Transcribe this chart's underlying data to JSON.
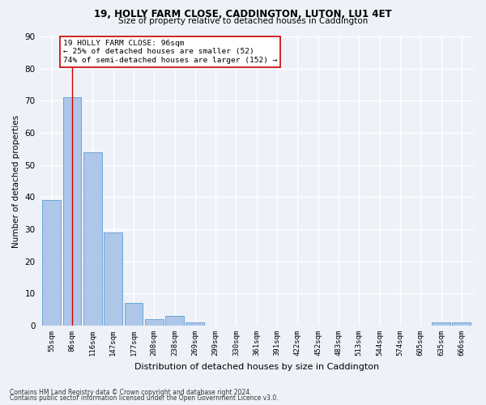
{
  "title1": "19, HOLLY FARM CLOSE, CADDINGTON, LUTON, LU1 4ET",
  "title2": "Size of property relative to detached houses in Caddington",
  "xlabel": "Distribution of detached houses by size in Caddington",
  "ylabel": "Number of detached properties",
  "footnote1": "Contains HM Land Registry data © Crown copyright and database right 2024.",
  "footnote2": "Contains public sector information licensed under the Open Government Licence v3.0.",
  "categories": [
    "55sqm",
    "86sqm",
    "116sqm",
    "147sqm",
    "177sqm",
    "208sqm",
    "238sqm",
    "269sqm",
    "299sqm",
    "330sqm",
    "361sqm",
    "391sqm",
    "422sqm",
    "452sqm",
    "483sqm",
    "513sqm",
    "544sqm",
    "574sqm",
    "605sqm",
    "635sqm",
    "666sqm"
  ],
  "values": [
    39,
    71,
    54,
    29,
    7,
    2,
    3,
    1,
    0,
    0,
    0,
    0,
    0,
    0,
    0,
    0,
    0,
    0,
    0,
    1,
    1
  ],
  "bar_color": "#aec6e8",
  "bar_edge_color": "#5a9fd4",
  "vline_color": "#cc0000",
  "annotation_text": "19 HOLLY FARM CLOSE: 96sqm\n← 25% of detached houses are smaller (52)\n74% of semi-detached houses are larger (152) →",
  "annotation_box_color": "white",
  "annotation_box_edge": "#cc0000",
  "ylim": [
    0,
    90
  ],
  "yticks": [
    0,
    10,
    20,
    30,
    40,
    50,
    60,
    70,
    80,
    90
  ],
  "bg_color": "#eef2f8",
  "grid_color": "white"
}
